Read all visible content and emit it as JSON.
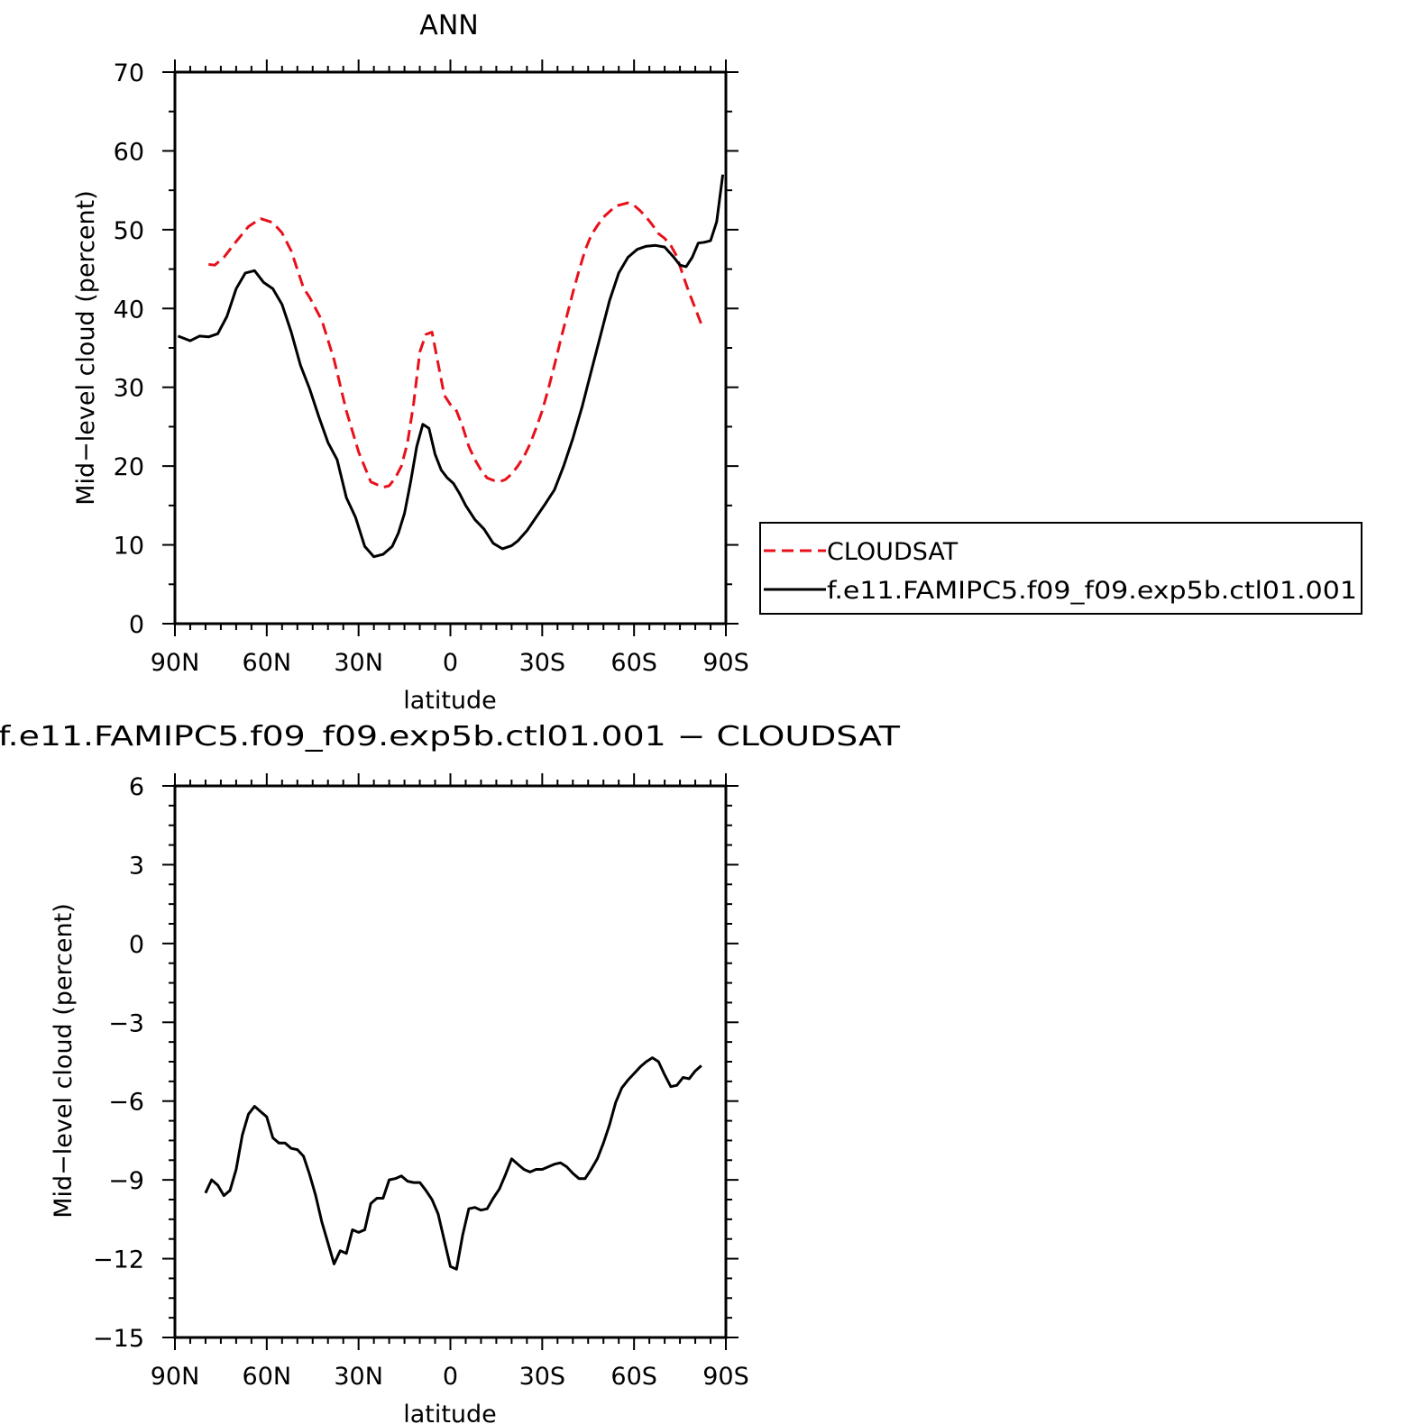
{
  "chart_data": [
    {
      "type": "line",
      "title": "ANN",
      "xlabel": "latitude",
      "ylabel": "Mid−level cloud (percent)",
      "xlim": [
        90,
        -90
      ],
      "ylim": [
        0,
        70
      ],
      "x_tick_values": [
        90,
        60,
        30,
        0,
        -30,
        -60,
        -90
      ],
      "x_tick_labels": [
        "90N",
        "60N",
        "30N",
        "0",
        "30S",
        "60S",
        "90S"
      ],
      "y_ticks": [
        0,
        10,
        20,
        30,
        40,
        50,
        60,
        70
      ],
      "legend_position": "right",
      "series": [
        {
          "name": "CLOUDSAT",
          "color": "#e8101a",
          "dash": "dashed",
          "x": [
            79,
            77,
            74,
            70,
            66,
            62,
            58,
            55,
            52,
            48,
            46,
            42,
            38,
            34,
            30,
            26,
            22,
            20,
            18,
            16,
            14,
            12,
            10,
            8,
            6,
            4,
            2,
            0,
            -2,
            -4,
            -6,
            -8,
            -10,
            -12,
            -14,
            -16,
            -18,
            -20,
            -22,
            -24,
            -26,
            -28,
            -30,
            -32,
            -34,
            -36,
            -38,
            -40,
            -42,
            -44,
            -46,
            -48,
            -50,
            -54,
            -58,
            -60,
            -62,
            -64,
            -66,
            -68,
            -70,
            -72,
            -74,
            -76,
            -78,
            -80,
            -82
          ],
          "y": [
            45.6,
            45.5,
            46.5,
            48.5,
            50.4,
            51.4,
            50.9,
            49.6,
            47.3,
            42.6,
            41.4,
            38.5,
            33.5,
            27.0,
            21.8,
            18.0,
            17.3,
            17.5,
            18.5,
            20.0,
            23.0,
            28.0,
            34.5,
            36.7,
            37.0,
            33.0,
            29.0,
            27.8,
            27.0,
            25.0,
            22.5,
            20.8,
            19.5,
            18.5,
            18.2,
            18.0,
            18.3,
            19.0,
            20.0,
            21.2,
            22.8,
            24.8,
            27.0,
            29.8,
            32.8,
            36.0,
            39.0,
            42.0,
            44.8,
            47.4,
            49.3,
            50.5,
            51.6,
            53.0,
            53.4,
            53.1,
            52.4,
            51.6,
            50.6,
            49.5,
            48.9,
            48.0,
            46.6,
            44.2,
            42.0,
            40.0,
            38.0
          ]
        },
        {
          "name": "f.e11.FAMIPC5.f09_f09.exp5b.ctl01.001",
          "color": "#000000",
          "dash": "solid",
          "x": [
            89,
            85,
            82,
            79,
            76,
            73,
            70,
            67,
            64,
            61,
            58,
            55,
            52,
            49,
            46,
            43,
            40,
            37,
            34,
            31,
            28,
            25,
            22,
            19,
            17,
            15,
            13,
            11,
            9,
            7,
            5,
            3,
            1,
            -1,
            -3,
            -5,
            -8,
            -11,
            -14,
            -17,
            -20,
            -22,
            -25,
            -28,
            -31,
            -34,
            -37,
            -40,
            -43,
            -46,
            -49,
            -52,
            -55,
            -58,
            -61,
            -64,
            -67,
            -70,
            -73,
            -75,
            -77,
            -79,
            -81,
            -83,
            -85,
            -87,
            -89
          ],
          "y": [
            36.5,
            35.9,
            36.5,
            36.4,
            36.8,
            39.0,
            42.5,
            44.5,
            44.8,
            43.3,
            42.5,
            40.5,
            37.0,
            32.8,
            29.8,
            26.3,
            23.0,
            20.8,
            16.0,
            13.5,
            9.8,
            8.5,
            8.8,
            9.8,
            11.5,
            14.0,
            18.0,
            22.5,
            25.3,
            24.8,
            21.5,
            19.5,
            18.5,
            17.8,
            16.5,
            15.0,
            13.2,
            12.0,
            10.2,
            9.5,
            9.9,
            10.5,
            11.8,
            13.5,
            15.2,
            17.0,
            20.0,
            23.5,
            27.5,
            32.0,
            36.5,
            41.0,
            44.5,
            46.5,
            47.5,
            47.9,
            48.0,
            47.8,
            46.5,
            45.5,
            45.3,
            46.5,
            48.3,
            48.4,
            48.6,
            51.0,
            57.0
          ]
        }
      ]
    },
    {
      "type": "line",
      "title": "f.e11.FAMIPC5.f09_f09.exp5b.ctl01.001 − CLOUDSAT",
      "xlabel": "latitude",
      "ylabel": "Mid−level cloud (percent)",
      "xlim": [
        90,
        -90
      ],
      "ylim": [
        -15,
        6
      ],
      "x_tick_values": [
        90,
        60,
        30,
        0,
        -30,
        -60,
        -90
      ],
      "x_tick_labels": [
        "90N",
        "60N",
        "30N",
        "0",
        "30S",
        "60S",
        "90S"
      ],
      "y_ticks": [
        -15,
        -12,
        -9,
        -6,
        -3,
        0,
        3,
        6
      ],
      "series": [
        {
          "color": "#000000",
          "dash": "solid",
          "x": [
            80,
            78,
            76,
            74,
            72,
            70,
            68,
            66,
            64,
            62,
            60,
            58,
            56,
            54,
            52,
            50,
            48,
            46,
            44,
            42,
            40,
            38,
            36,
            34,
            32,
            30,
            28,
            26,
            24,
            22,
            20,
            18,
            16,
            14,
            12,
            10,
            8,
            6,
            4,
            2,
            0,
            -2,
            -4,
            -6,
            -8,
            -10,
            -12,
            -14,
            -16,
            -18,
            -20,
            -22,
            -24,
            -26,
            -28,
            -30,
            -32,
            -34,
            -36,
            -38,
            -40,
            -42,
            -44,
            -46,
            -48,
            -50,
            -52,
            -54,
            -56,
            -58,
            -60,
            -62,
            -64,
            -66,
            -68,
            -70,
            -72,
            -74,
            -76,
            -78,
            -80,
            -82
          ],
          "y": [
            -9.5,
            -9.0,
            -9.2,
            -9.6,
            -9.4,
            -8.6,
            -7.3,
            -6.5,
            -6.2,
            -6.4,
            -6.6,
            -7.4,
            -7.6,
            -7.6,
            -7.8,
            -7.85,
            -8.1,
            -8.8,
            -9.6,
            -10.6,
            -11.4,
            -12.2,
            -11.7,
            -11.8,
            -10.9,
            -11.0,
            -10.9,
            -9.9,
            -9.7,
            -9.7,
            -9.0,
            -8.95,
            -8.85,
            -9.05,
            -9.1,
            -9.1,
            -9.4,
            -9.75,
            -10.3,
            -11.3,
            -12.3,
            -12.4,
            -11.1,
            -10.1,
            -10.05,
            -10.15,
            -10.1,
            -9.7,
            -9.35,
            -8.8,
            -8.2,
            -8.4,
            -8.6,
            -8.7,
            -8.6,
            -8.6,
            -8.5,
            -8.4,
            -8.35,
            -8.5,
            -8.75,
            -8.95,
            -8.95,
            -8.6,
            -8.2,
            -7.6,
            -6.9,
            -6.05,
            -5.5,
            -5.2,
            -4.95,
            -4.7,
            -4.5,
            -4.35,
            -4.5,
            -5.0,
            -5.45,
            -5.4,
            -5.1,
            -5.15,
            -4.85,
            -4.65
          ]
        }
      ]
    }
  ],
  "legend": {
    "items": [
      {
        "label": "CLOUDSAT",
        "color": "#e8101a",
        "dash": "dashed"
      },
      {
        "label": "f.e11.FAMIPC5.f09_f09.exp5b.ctl01.001",
        "color": "#000000",
        "dash": "solid"
      }
    ]
  }
}
